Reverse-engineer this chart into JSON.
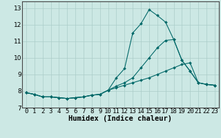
{
  "bg_color": "#cce8e4",
  "line_color": "#006868",
  "grid_color": "#aaccc8",
  "xlabel": "Humidex (Indice chaleur)",
  "xlabel_fontsize": 7.5,
  "tick_fontsize": 6.5,
  "ylabel_ticks": [
    7,
    8,
    9,
    10,
    11,
    12,
    13
  ],
  "xlim": [
    -0.5,
    23.5
  ],
  "ylim": [
    7.0,
    13.4
  ],
  "line1_x": [
    0,
    1,
    2,
    3,
    4,
    5,
    6,
    7,
    8,
    9,
    10,
    11,
    12,
    13,
    14,
    15,
    16,
    17,
    18,
    19,
    20,
    21,
    22,
    23
  ],
  "line1_y": [
    7.9,
    7.8,
    7.65,
    7.65,
    7.6,
    7.55,
    7.6,
    7.65,
    7.75,
    7.8,
    8.05,
    8.8,
    9.35,
    11.5,
    12.05,
    12.9,
    12.55,
    12.15,
    11.1,
    9.85,
    9.2,
    8.5,
    8.4,
    8.35
  ],
  "line2_x": [
    0,
    1,
    2,
    3,
    4,
    5,
    6,
    7,
    8,
    9,
    10,
    11,
    12,
    13,
    14,
    15,
    16,
    17,
    18,
    19,
    20,
    21,
    22,
    23
  ],
  "line2_y": [
    7.9,
    7.8,
    7.65,
    7.65,
    7.6,
    7.55,
    7.6,
    7.65,
    7.75,
    7.8,
    8.05,
    8.3,
    8.5,
    8.8,
    9.4,
    10.0,
    10.6,
    11.05,
    11.1,
    9.85,
    9.2,
    8.5,
    8.4,
    8.35
  ],
  "line3_x": [
    0,
    1,
    2,
    3,
    4,
    5,
    6,
    7,
    8,
    9,
    10,
    11,
    12,
    13,
    14,
    15,
    16,
    17,
    18,
    19,
    20,
    21,
    22,
    23
  ],
  "line3_y": [
    7.9,
    7.8,
    7.65,
    7.65,
    7.6,
    7.55,
    7.6,
    7.65,
    7.75,
    7.8,
    8.05,
    8.2,
    8.35,
    8.5,
    8.65,
    8.8,
    9.0,
    9.2,
    9.4,
    9.6,
    9.7,
    8.5,
    8.4,
    8.35
  ]
}
